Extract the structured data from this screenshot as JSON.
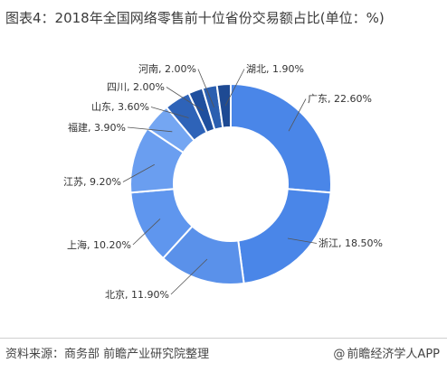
{
  "title": "图表4：2018年全国网络零售前十位省份交易额占比(单位：%)",
  "source": "资料来源：商务部 前瞻产业研究院整理",
  "brand": "前瞻经济学人APP",
  "brand_icon": "at-sign-icon",
  "chart_data": {
    "type": "pie",
    "variant": "donut",
    "title": "图表4：2018年全国网络零售前十位省份交易额占比(单位：%)",
    "unit": "%",
    "slices": [
      {
        "name": "广东",
        "value": 22.6,
        "label": "广东, 22.60%",
        "color": "#4a86e8"
      },
      {
        "name": "浙江",
        "value": 18.5,
        "label": "浙江, 18.50%",
        "color": "#4a86e8"
      },
      {
        "name": "北京",
        "value": 11.9,
        "label": "北京, 11.90%",
        "color": "#5a91ea"
      },
      {
        "name": "上海",
        "value": 10.2,
        "label": "上海, 10.20%",
        "color": "#5f96ee"
      },
      {
        "name": "江苏",
        "value": 9.2,
        "label": "江苏, 9.20%",
        "color": "#6a9ef0"
      },
      {
        "name": "福建",
        "value": 3.9,
        "label": "福建, 3.90%",
        "color": "#74a6f2"
      },
      {
        "name": "山东",
        "value": 3.6,
        "label": "山东, 3.60%",
        "color": "#2e63b8"
      },
      {
        "name": "四川",
        "value": 2.0,
        "label": "四川, 2.00%",
        "color": "#1f4f9e"
      },
      {
        "name": "河南",
        "value": 2.0,
        "label": "河南, 2.00%",
        "color": "#2b5fb0"
      },
      {
        "name": "湖北",
        "value": 1.9,
        "label": "湖北, 1.90%",
        "color": "#1e4a93"
      }
    ]
  }
}
